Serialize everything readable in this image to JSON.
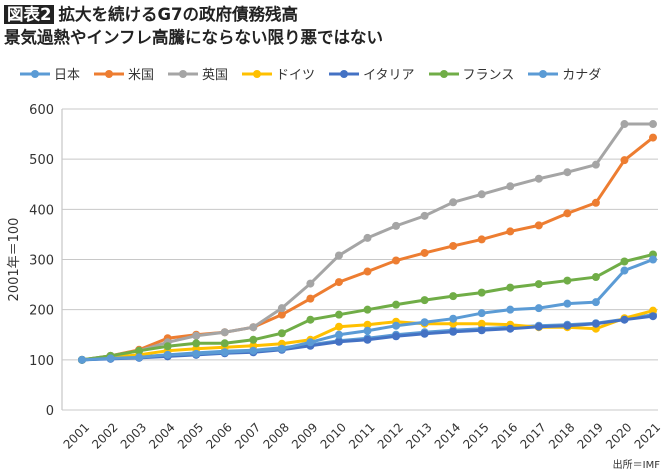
{
  "title_badge": "図表2",
  "title_line1": "拡大を続けるG7の政府債務残高",
  "title_line2": "景気過熱やインフレ高騰にならない限り悪ではない",
  "source": "出所＝IMF",
  "chart_data": {
    "type": "line",
    "ylabel": "2001年＝100",
    "ylim": [
      0,
      600
    ],
    "yticks": [
      0,
      100,
      200,
      300,
      400,
      500,
      600
    ],
    "grid": true,
    "legend": "top",
    "x": [
      "2001",
      "2002",
      "2003",
      "2004",
      "2005",
      "2006",
      "2007",
      "2008",
      "2009",
      "2010",
      "2011",
      "2012",
      "2013",
      "2014",
      "2015",
      "2016",
      "2017",
      "2018",
      "2019",
      "2020",
      "2021"
    ],
    "series": [
      {
        "name": "日本",
        "color": "#5B9BD5",
        "values": [
          100,
          103,
          106,
          110,
          114,
          117,
          119,
          124,
          130,
          138,
          143,
          150,
          155,
          159,
          162,
          165,
          168,
          170,
          173,
          181,
          190
        ]
      },
      {
        "name": "米国",
        "color": "#ED7D31",
        "values": [
          100,
          108,
          120,
          143,
          150,
          155,
          165,
          190,
          222,
          255,
          276,
          298,
          313,
          327,
          340,
          356,
          368,
          392,
          413,
          498,
          543
        ]
      },
      {
        "name": "英国",
        "color": "#A5A5A5",
        "values": [
          100,
          108,
          118,
          135,
          148,
          155,
          165,
          203,
          252,
          308,
          343,
          367,
          387,
          414,
          430,
          446,
          461,
          474,
          489,
          570,
          570
        ]
      },
      {
        "name": "ドイツ",
        "color": "#FFC000",
        "values": [
          100,
          105,
          110,
          118,
          122,
          125,
          128,
          132,
          140,
          166,
          170,
          176,
          172,
          172,
          172,
          170,
          165,
          165,
          162,
          183,
          198
        ]
      },
      {
        "name": "イタリア",
        "color": "#4472C4",
        "values": [
          100,
          102,
          104,
          107,
          110,
          113,
          115,
          120,
          128,
          136,
          140,
          147,
          152,
          156,
          159,
          162,
          166,
          168,
          172,
          180,
          187
        ]
      },
      {
        "name": "フランス",
        "color": "#70AD47",
        "values": [
          100,
          108,
          118,
          127,
          133,
          133,
          140,
          153,
          180,
          190,
          200,
          210,
          219,
          227,
          234,
          244,
          251,
          258,
          265,
          296,
          310
        ]
      },
      {
        "name": "カナダ",
        "color": "#5B9BD5",
        "values": [
          100,
          103,
          105,
          110,
          112,
          115,
          118,
          122,
          135,
          150,
          158,
          168,
          175,
          182,
          193,
          200,
          203,
          212,
          215,
          278,
          300
        ]
      }
    ]
  }
}
